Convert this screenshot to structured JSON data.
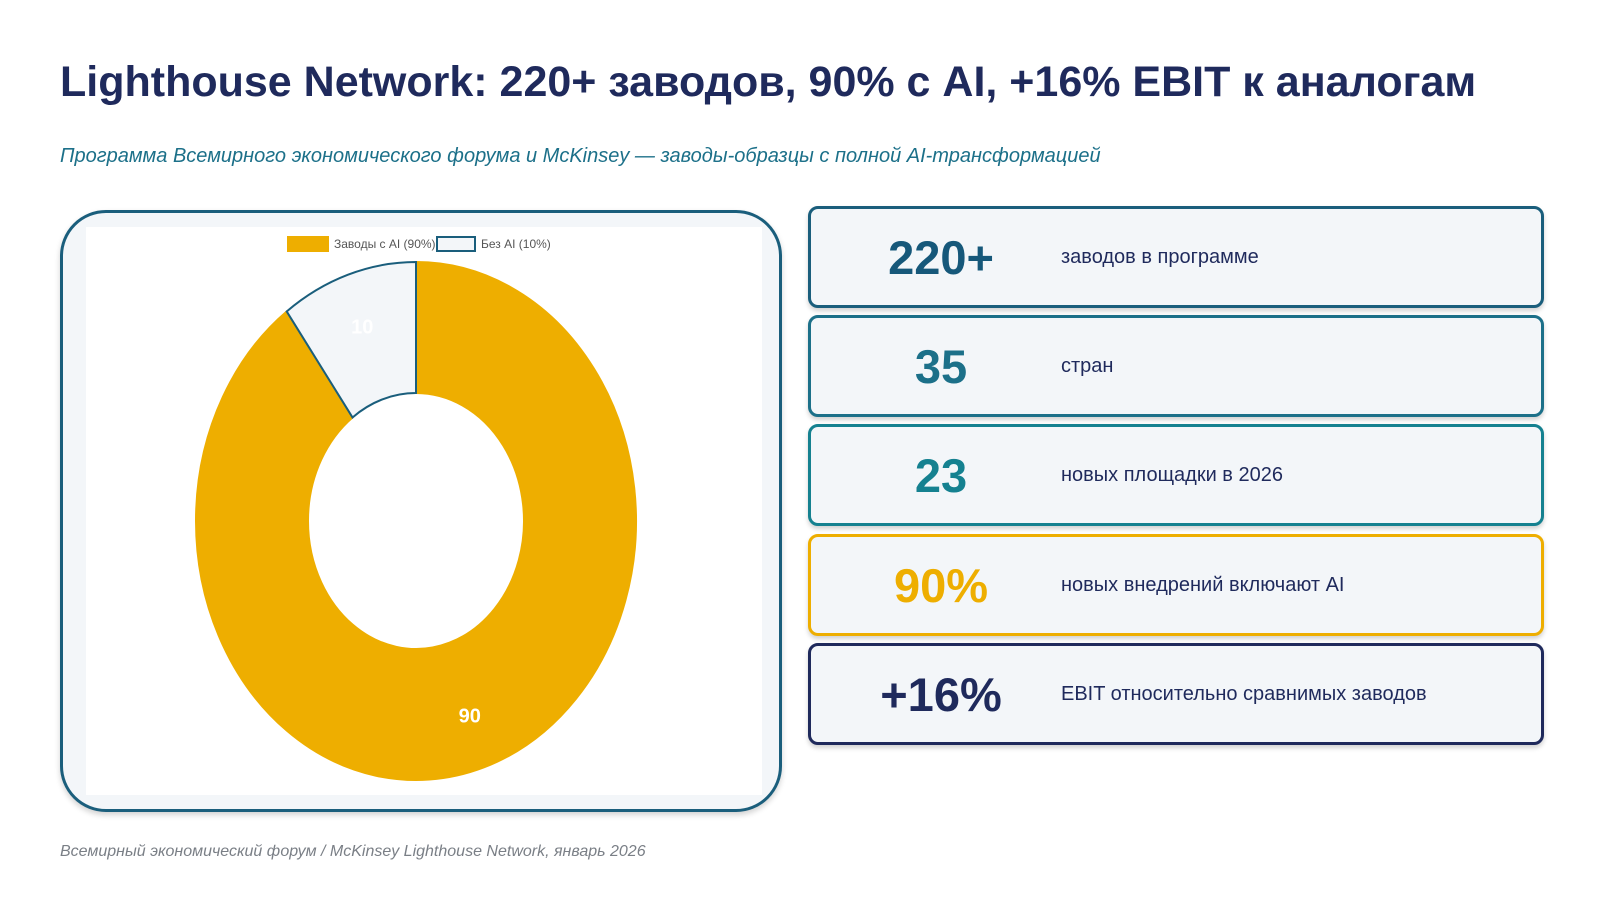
{
  "title": "Lighthouse Network: 220+ заводов, 90% с AI, +16% EBIT к аналогам",
  "subtitle": "Программа Всемирного экономического форума и McKinsey — заводы-образцы с полной AI-трансформацией",
  "chart_data": {
    "type": "pie",
    "donut": true,
    "categories": [
      "Заводы с AI (90%)",
      "Без AI (10%)"
    ],
    "values": [
      90,
      10
    ],
    "data_labels": [
      "90",
      "10"
    ],
    "colors": [
      "#eeae00",
      "#f3f6f9"
    ],
    "stroke_colors": [
      "#eeae00",
      "#1a5e7c"
    ],
    "legend": "top",
    "title": ""
  },
  "stats": [
    {
      "value": "220+",
      "label": "заводов в программе",
      "value_color": "#16587a",
      "border_color": "#1a5e7c"
    },
    {
      "value": "35",
      "label": "стран",
      "value_color": "#1c7089",
      "border_color": "#1c7089"
    },
    {
      "value": "23",
      "label": "новых площадки в 2026",
      "value_color": "#158190",
      "border_color": "#158190"
    },
    {
      "value": "90%",
      "label": "новых внедрений включают AI",
      "value_color": "#eeae00",
      "border_color": "#eeae00"
    },
    {
      "value": "+16%",
      "label": "EBIT относительно сравнимых заводов",
      "value_color": "#1f2a5c",
      "border_color": "#1f2a5c"
    }
  ],
  "footer": "Всемирный экономический форум / McKinsey Lighthouse Network, январь 2026"
}
